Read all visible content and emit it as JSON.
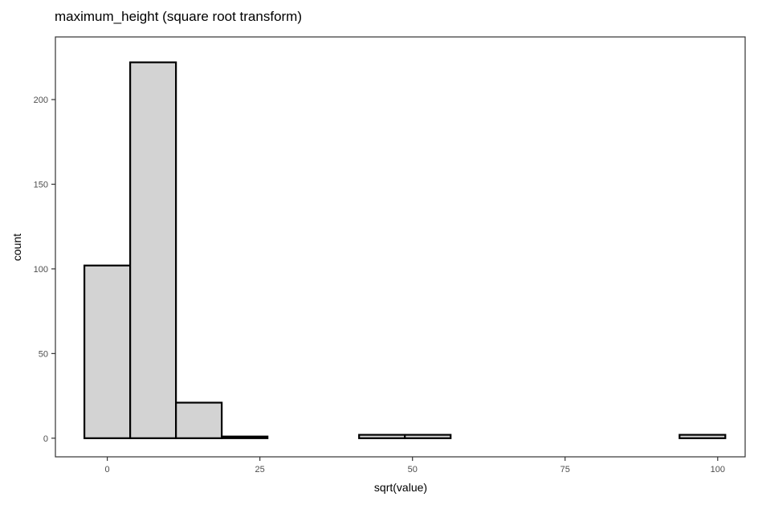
{
  "chart_data": {
    "type": "bar",
    "title": "maximum_height (square root transform)",
    "xlabel": "sqrt(value)",
    "ylabel": "count",
    "xlim": [
      -8.5,
      104.5
    ],
    "ylim": [
      -11,
      237
    ],
    "x_ticks": [
      0,
      25,
      50,
      75,
      100
    ],
    "y_ticks": [
      0,
      50,
      100,
      150,
      200
    ],
    "grid": false,
    "bar_fill": "#d3d3d3",
    "bar_stroke": "#000000",
    "bins": [
      {
        "x0": -3.75,
        "x1": 3.75,
        "count": 102
      },
      {
        "x0": 3.75,
        "x1": 11.25,
        "count": 222
      },
      {
        "x0": 11.25,
        "x1": 18.75,
        "count": 21
      },
      {
        "x0": 18.75,
        "x1": 26.25,
        "count": 1
      },
      {
        "x0": 26.25,
        "x1": 33.75,
        "count": 0
      },
      {
        "x0": 33.75,
        "x1": 41.25,
        "count": 0
      },
      {
        "x0": 41.25,
        "x1": 48.75,
        "count": 2
      },
      {
        "x0": 48.75,
        "x1": 56.25,
        "count": 2
      },
      {
        "x0": 56.25,
        "x1": 63.75,
        "count": 0
      },
      {
        "x0": 63.75,
        "x1": 71.25,
        "count": 0
      },
      {
        "x0": 71.25,
        "x1": 78.75,
        "count": 0
      },
      {
        "x0": 78.75,
        "x1": 86.25,
        "count": 0
      },
      {
        "x0": 86.25,
        "x1": 93.75,
        "count": 0
      },
      {
        "x0": 93.75,
        "x1": 101.25,
        "count": 2
      }
    ]
  }
}
